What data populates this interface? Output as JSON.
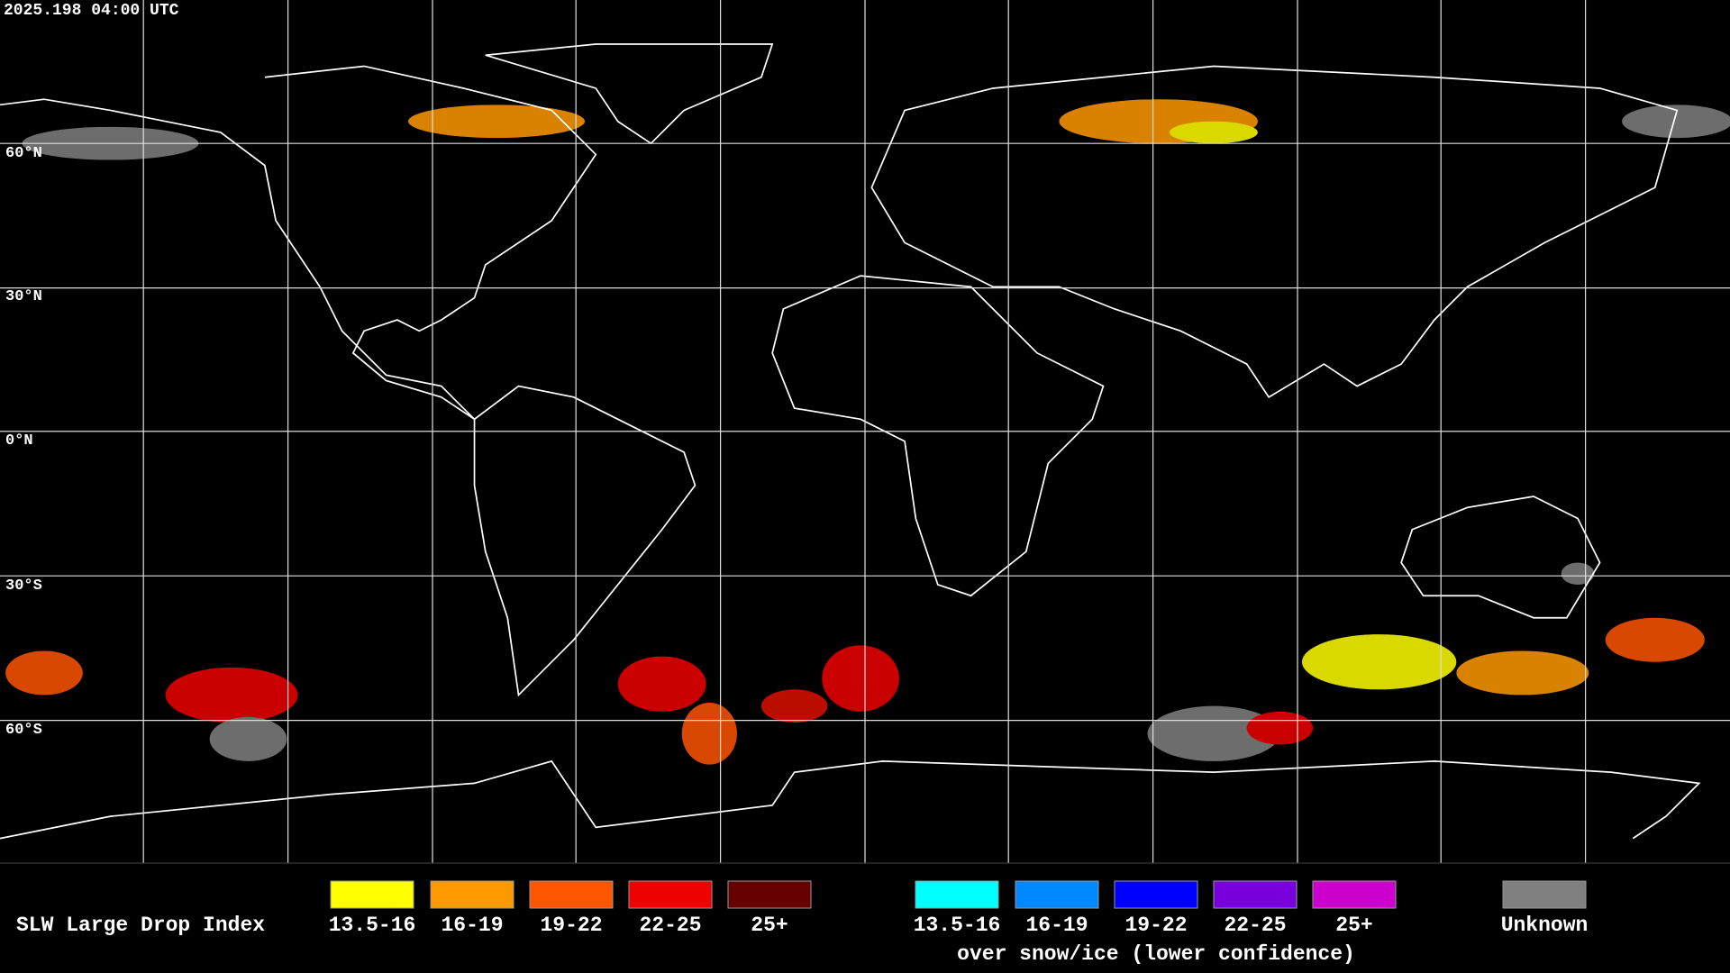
{
  "timestamp": "2025.198 04:00 UTC",
  "latitude_labels": [
    "60°N",
    "30°N",
    "0°N",
    "30°S",
    "60°S"
  ],
  "legend": {
    "title": "SLW Large Drop Index",
    "liquid": [
      {
        "label": "13.5-16",
        "color": "#ffff00"
      },
      {
        "label": "16-19",
        "color": "#ff9900"
      },
      {
        "label": "19-22",
        "color": "#ff5500"
      },
      {
        "label": "22-25",
        "color": "#ee0000"
      },
      {
        "label": "25+",
        "color": "#660000"
      }
    ],
    "snow_ice": [
      {
        "label": "13.5-16",
        "color": "#00ffff"
      },
      {
        "label": "16-19",
        "color": "#0088ff"
      },
      {
        "label": "19-22",
        "color": "#0000ff"
      },
      {
        "label": "22-25",
        "color": "#7700dd"
      },
      {
        "label": "25+",
        "color": "#cc00cc"
      }
    ],
    "snow_ice_caption": "over snow/ice (lower confidence)",
    "unknown": {
      "label": "Unknown",
      "color": "#808080"
    }
  }
}
